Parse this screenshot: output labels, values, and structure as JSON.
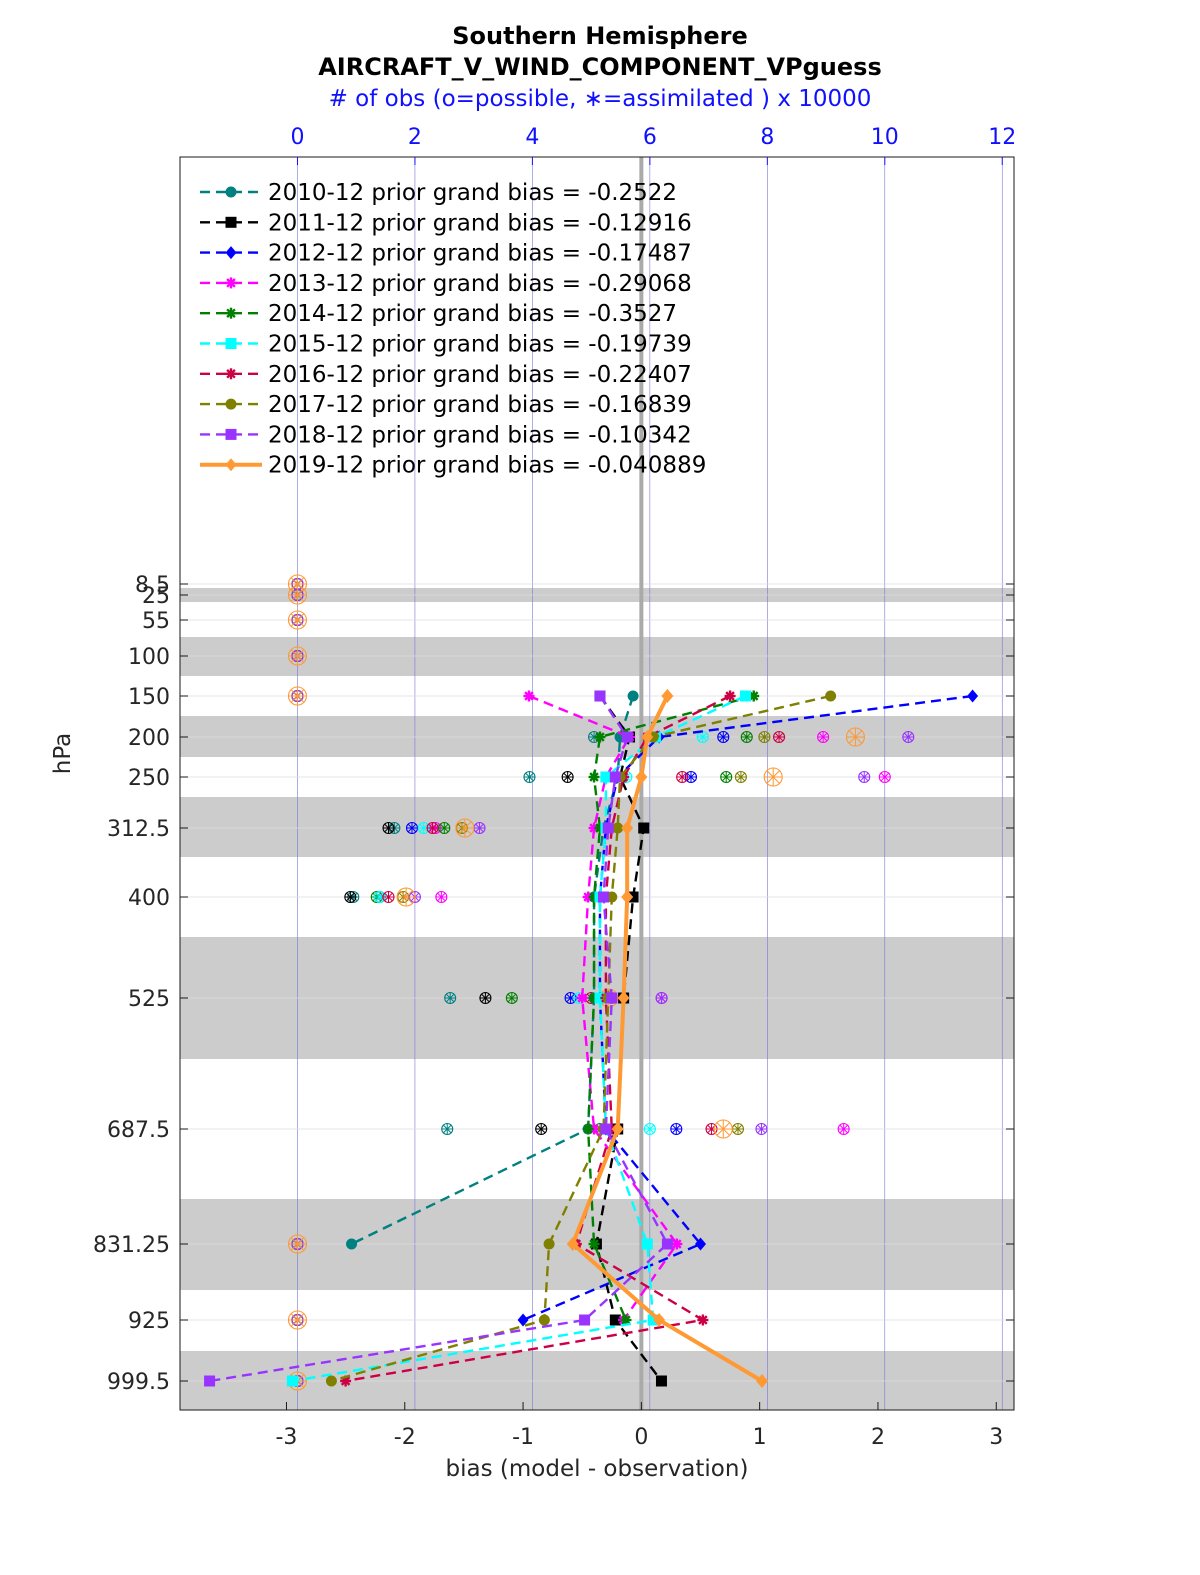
{
  "chart_data": {
    "type": "line",
    "title": "Southern Hemisphere",
    "subtitle": "AIRCRAFT_V_WIND_COMPONENT_VPguess",
    "xlabel": "bias (model - observation)",
    "ylabel": "hPa",
    "top_xlabel": "# of obs (o=possible, ∗=assimilated ) x 10000",
    "xlim": [
      -3.9,
      3.15
    ],
    "x_ticks": [
      -3,
      -2,
      -1,
      0,
      1,
      2,
      3
    ],
    "top_xlim": [
      -2.0,
      12.2
    ],
    "top_ticks": [
      0,
      2,
      4,
      6,
      8,
      10,
      12
    ],
    "y_levels": [
      8.5,
      25,
      55,
      100,
      150,
      200,
      250,
      312.5,
      400,
      525,
      687.5,
      831.25,
      925,
      999.5
    ],
    "y_tick_labels": [
      "8.5",
      "25",
      "55",
      "100",
      "150",
      "200",
      "250",
      "312.5",
      "400",
      "525",
      "687.5",
      "831.25",
      "925",
      "999.5"
    ],
    "y_reversed": true,
    "grid": true,
    "legend_position": "top-left",
    "series": [
      {
        "name": "2010-12 prior grand bias = -0.2522",
        "color": "#008080",
        "marker": "circle",
        "dashed": true,
        "points": [
          [
            -0.07,
            150
          ],
          [
            -0.18,
            200
          ],
          [
            -0.2,
            250
          ],
          [
            -0.32,
            312.5
          ],
          [
            -0.4,
            400
          ],
          [
            -0.4,
            525
          ],
          [
            -0.45,
            687.5
          ],
          [
            -2.45,
            831.25
          ]
        ]
      },
      {
        "name": "2011-12 prior grand bias = -0.12916",
        "color": "#000000",
        "marker": "square",
        "dashed": true,
        "points": [
          [
            -0.35,
            150
          ],
          [
            -0.1,
            200
          ],
          [
            -0.18,
            250
          ],
          [
            0.02,
            312.5
          ],
          [
            -0.07,
            400
          ],
          [
            -0.15,
            525
          ],
          [
            -0.2,
            687.5
          ],
          [
            -0.38,
            831.25
          ],
          [
            -0.22,
            925
          ],
          [
            0.17,
            999.5
          ]
        ]
      },
      {
        "name": "2012-12 prior grand bias = -0.17487",
        "color": "#0000ff",
        "marker": "diamond",
        "dashed": true,
        "points": [
          [
            2.8,
            150
          ],
          [
            0.15,
            200
          ],
          [
            -0.2,
            250
          ],
          [
            -0.3,
            312.5
          ],
          [
            -0.35,
            400
          ],
          [
            -0.35,
            525
          ],
          [
            -0.3,
            687.5
          ],
          [
            0.5,
            831.25
          ],
          [
            -1.0,
            925
          ]
        ]
      },
      {
        "name": "2013-12 prior grand bias = -0.29068",
        "color": "#ff00ff",
        "marker": "star",
        "dashed": true,
        "points": [
          [
            -0.95,
            150
          ],
          [
            -0.1,
            200
          ],
          [
            -0.3,
            250
          ],
          [
            -0.4,
            312.5
          ],
          [
            -0.45,
            400
          ],
          [
            -0.5,
            525
          ],
          [
            -0.4,
            687.5
          ],
          [
            0.3,
            831.25
          ],
          [
            -0.15,
            925
          ]
        ]
      },
      {
        "name": "2014-12 prior grand bias = -0.3527",
        "color": "#008000",
        "marker": "star",
        "dashed": true,
        "points": [
          [
            0.95,
            150
          ],
          [
            -0.35,
            200
          ],
          [
            -0.4,
            250
          ],
          [
            -0.35,
            312.5
          ],
          [
            -0.4,
            400
          ],
          [
            -0.4,
            525
          ],
          [
            -0.45,
            687.5
          ],
          [
            -0.4,
            831.25
          ],
          [
            -0.13,
            925
          ]
        ]
      },
      {
        "name": "2015-12 prior grand bias = -0.19739",
        "color": "#00ffff",
        "marker": "square",
        "dashed": true,
        "points": [
          [
            0.88,
            150
          ],
          [
            0.12,
            200
          ],
          [
            -0.3,
            250
          ],
          [
            -0.3,
            312.5
          ],
          [
            -0.35,
            400
          ],
          [
            -0.35,
            525
          ],
          [
            -0.3,
            687.5
          ],
          [
            0.05,
            831.25
          ],
          [
            0.1,
            925
          ],
          [
            -2.95,
            999.5
          ]
        ]
      },
      {
        "name": "2016-12 prior grand bias = -0.22407",
        "color": "#cc0044",
        "marker": "star",
        "dashed": true,
        "points": [
          [
            0.75,
            150
          ],
          [
            0.05,
            200
          ],
          [
            -0.15,
            250
          ],
          [
            -0.25,
            312.5
          ],
          [
            -0.3,
            400
          ],
          [
            -0.3,
            525
          ],
          [
            -0.25,
            687.5
          ],
          [
            -0.55,
            831.25
          ],
          [
            0.52,
            925
          ],
          [
            -2.5,
            999.5
          ]
        ]
      },
      {
        "name": "2017-12 prior grand bias = -0.16839",
        "color": "#808000",
        "marker": "circle",
        "dashed": true,
        "points": [
          [
            1.6,
            150
          ],
          [
            0.1,
            200
          ],
          [
            -0.18,
            250
          ],
          [
            -0.2,
            312.5
          ],
          [
            -0.25,
            400
          ],
          [
            -0.28,
            525
          ],
          [
            -0.32,
            687.5
          ],
          [
            -0.78,
            831.25
          ],
          [
            -0.82,
            925
          ],
          [
            -2.62,
            999.5
          ]
        ]
      },
      {
        "name": "2018-12 prior grand bias = -0.10342",
        "color": "#9933ff",
        "marker": "square",
        "dashed": true,
        "points": [
          [
            -0.35,
            150
          ],
          [
            -0.12,
            200
          ],
          [
            -0.22,
            250
          ],
          [
            -0.28,
            312.5
          ],
          [
            -0.32,
            400
          ],
          [
            -0.25,
            525
          ],
          [
            -0.3,
            687.5
          ],
          [
            0.22,
            831.25
          ],
          [
            -0.48,
            925
          ],
          [
            -3.65,
            999.5
          ]
        ]
      },
      {
        "name": "2019-12 prior grand bias = -0.040889",
        "color": "#ff9933",
        "marker": "diamond",
        "dashed": false,
        "points": [
          [
            0.22,
            150
          ],
          [
            0.05,
            200
          ],
          [
            0.0,
            250
          ],
          [
            -0.12,
            312.5
          ],
          [
            -0.12,
            400
          ],
          [
            -0.15,
            525
          ],
          [
            -0.2,
            687.5
          ],
          [
            -0.58,
            831.25
          ],
          [
            0.15,
            925
          ],
          [
            1.02,
            999.5
          ]
        ]
      }
    ],
    "obs_counts": [
      {
        "level": 8.5,
        "values": [
          0,
          0,
          0,
          0,
          0,
          0,
          0,
          0,
          0,
          0
        ]
      },
      {
        "level": 25,
        "values": [
          0,
          0,
          0,
          0,
          0,
          0,
          0,
          0,
          0,
          0
        ]
      },
      {
        "level": 55,
        "values": [
          0,
          0,
          0,
          0,
          0,
          0,
          0,
          0,
          0,
          0
        ]
      },
      {
        "level": 100,
        "values": [
          0,
          0,
          0,
          0,
          0,
          0,
          0,
          0,
          0,
          0
        ]
      },
      {
        "level": 150,
        "values": [
          0,
          0,
          0,
          0,
          0,
          0,
          0,
          0,
          0,
          0
        ]
      },
      {
        "level": 200,
        "values": [
          5.05,
          5.6,
          7.25,
          8.95,
          7.65,
          6.9,
          8.2,
          7.95,
          10.4,
          9.5
        ]
      },
      {
        "level": 250,
        "values": [
          3.95,
          4.6,
          6.7,
          10.0,
          7.3,
          5.6,
          6.55,
          7.55,
          9.65,
          8.1
        ]
      },
      {
        "level": 312.5,
        "values": [
          1.65,
          1.55,
          1.95,
          2.35,
          2.5,
          2.15,
          2.3,
          2.8,
          3.1,
          2.85
        ]
      },
      {
        "level": 400,
        "values": [
          0.95,
          0.9,
          1.4,
          2.45,
          1.35,
          1.4,
          1.55,
          1.8,
          2.0,
          1.85
        ]
      },
      {
        "level": 525,
        "values": [
          2.6,
          3.2,
          4.65,
          6.2,
          3.65,
          4.8,
          5.0,
          5.35,
          6.2,
          5.3
        ]
      },
      {
        "level": 687.5,
        "values": [
          2.55,
          4.15,
          6.45,
          9.3,
          5.15,
          6.0,
          7.05,
          7.5,
          7.9,
          7.25
        ]
      },
      {
        "level": 831.25,
        "values": [
          0,
          0,
          0,
          0,
          0,
          0,
          0,
          0,
          0,
          0
        ]
      },
      {
        "level": 925,
        "values": [
          0,
          0,
          0,
          0,
          0,
          0,
          0,
          0,
          0,
          0
        ]
      },
      {
        "level": 999.5,
        "values": [
          0,
          0,
          0,
          0,
          0,
          0,
          0,
          0,
          0,
          0
        ]
      }
    ]
  }
}
